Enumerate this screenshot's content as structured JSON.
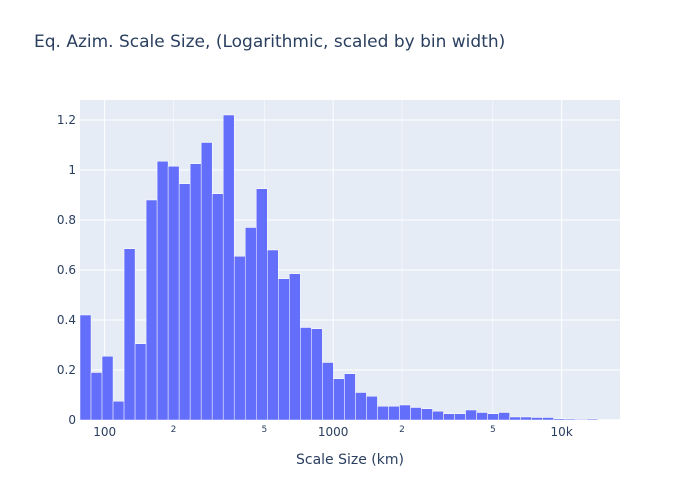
{
  "chart_data": {
    "type": "bar",
    "title": "Eq. Azim. Scale Size, (Logarithmic, scaled by bin width)",
    "xlabel": "Scale Size (km)",
    "ylabel": "",
    "x_scale": "log",
    "xlim": [
      78,
      18000
    ],
    "ylim": [
      0,
      1.28
    ],
    "grid": true,
    "bar_color": "#636efa",
    "plot_bg": "#e5ecf6",
    "x_ticks": [
      {
        "value": 100,
        "label": "100",
        "major": true
      },
      {
        "value": 200,
        "label": "2",
        "major": false
      },
      {
        "value": 500,
        "label": "5",
        "major": false
      },
      {
        "value": 1000,
        "label": "1000",
        "major": true
      },
      {
        "value": 2000,
        "label": "2",
        "major": false
      },
      {
        "value": 5000,
        "label": "5",
        "major": false
      },
      {
        "value": 10000,
        "label": "10k",
        "major": true
      }
    ],
    "y_ticks": [
      {
        "value": 0,
        "label": "0"
      },
      {
        "value": 0.2,
        "label": "0.2"
      },
      {
        "value": 0.4,
        "label": "0.4"
      },
      {
        "value": 0.6,
        "label": "0.6"
      },
      {
        "value": 0.8,
        "label": "0.8"
      },
      {
        "value": 1,
        "label": "1"
      },
      {
        "value": 1.2,
        "label": "1.2"
      }
    ],
    "bins": {
      "start": 78,
      "end": 17960,
      "count": 49
    },
    "values": [
      0.42,
      0.19,
      0.255,
      0.075,
      0.685,
      0.305,
      0.88,
      1.035,
      1.015,
      0.945,
      1.025,
      1.11,
      0.905,
      1.22,
      0.655,
      0.77,
      0.925,
      0.68,
      0.565,
      0.585,
      0.37,
      0.365,
      0.23,
      0.165,
      0.185,
      0.11,
      0.095,
      0.055,
      0.055,
      0.06,
      0.05,
      0.045,
      0.035,
      0.025,
      0.025,
      0.04,
      0.03,
      0.025,
      0.03,
      0.012,
      0.012,
      0.01,
      0.01,
      0.005,
      0.004,
      0.003,
      0.004,
      0.002,
      0.002
    ]
  }
}
